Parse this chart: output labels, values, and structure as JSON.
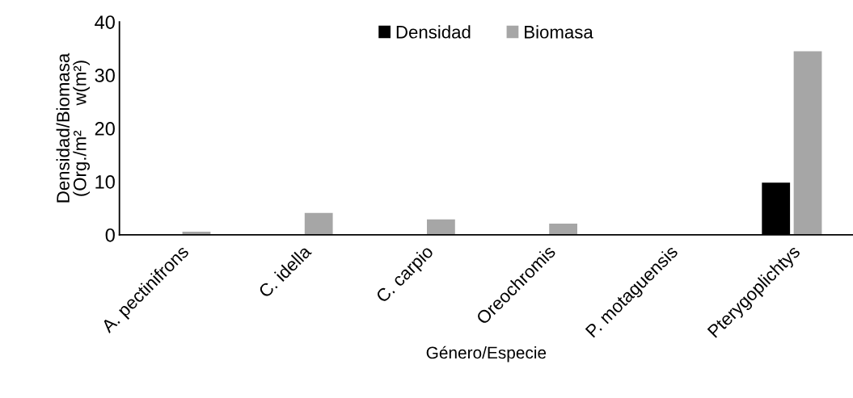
{
  "chart_data": {
    "type": "bar",
    "xlabel": "Género/Especie",
    "ylabel": "Densidad/Biomasa\n(Org./m²     w(m²)",
    "categories": [
      "A. pectinifrons",
      "C. idella",
      "C. carpio",
      "Oreochromis",
      "P. motaguensis",
      "Pterygoplichtys"
    ],
    "series": [
      {
        "name": "Densidad",
        "color": "#000000",
        "values": [
          0,
          0,
          0,
          0,
          0,
          9.8
        ]
      },
      {
        "name": "Biomasa",
        "color": "#a6a6a6",
        "values": [
          0.6,
          4.1,
          2.9,
          2.1,
          0,
          34.5
        ]
      }
    ],
    "ylim": [
      0,
      40
    ],
    "yticks": [
      0,
      10,
      20,
      30,
      40
    ],
    "grid": false,
    "legend": "top"
  }
}
